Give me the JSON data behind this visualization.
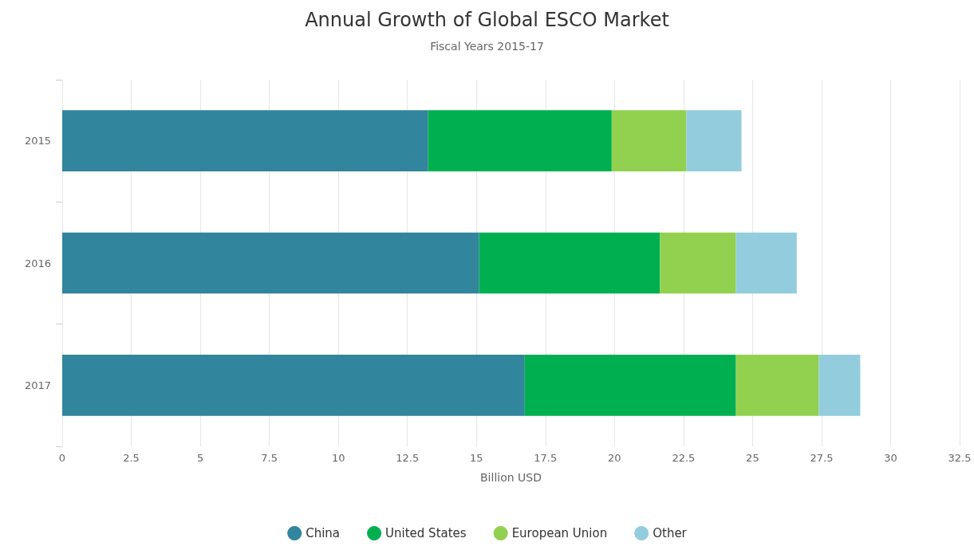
{
  "chart_data": {
    "type": "bar",
    "title": "Annual Growth of Global ESCO Market",
    "subtitle": "Fiscal Years 2015-17",
    "xlabel": "Billion USD",
    "orientation": "horizontal",
    "stacked": true,
    "categories": [
      "2015",
      "2016",
      "2017"
    ],
    "series": [
      {
        "name": "China",
        "color": "#31859c",
        "values": [
          13.25,
          15.1,
          16.75
        ]
      },
      {
        "name": "United States",
        "color": "#00b050",
        "values": [
          6.65,
          6.55,
          7.65
        ]
      },
      {
        "name": "European Union",
        "color": "#92d050",
        "values": [
          2.7,
          2.75,
          3.0
        ]
      },
      {
        "name": "Other",
        "color": "#93cddd",
        "values": [
          2.0,
          2.2,
          1.5
        ]
      }
    ],
    "xlim": [
      0,
      32.5
    ],
    "xticks": [
      0,
      2.5,
      5,
      7.5,
      10,
      12.5,
      15,
      17.5,
      20,
      22.5,
      25,
      27.5,
      30,
      32.5
    ],
    "grid": "x",
    "legend": "bottom"
  }
}
